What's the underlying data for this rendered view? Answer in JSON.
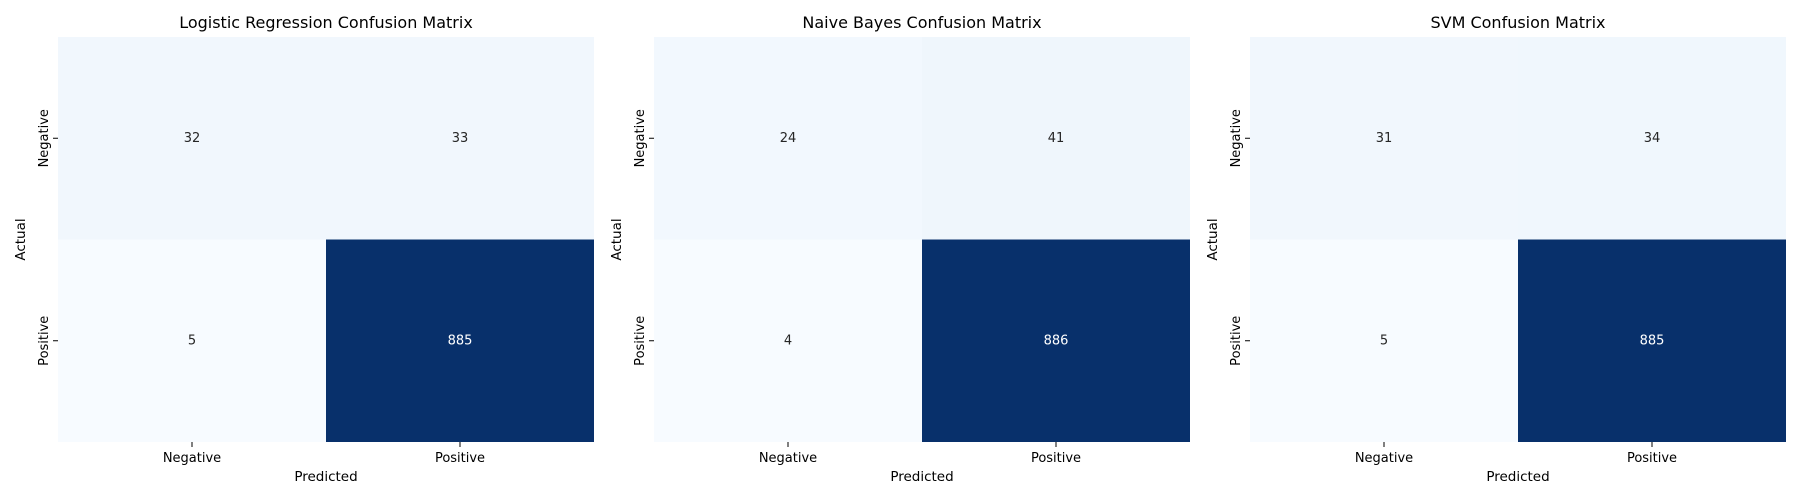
{
  "chart_data": [
    {
      "type": "heatmap",
      "title": "Logistic Regression Confusion Matrix",
      "xlabel": "Predicted",
      "ylabel": "Actual",
      "x_categories": [
        "Negative",
        "Positive"
      ],
      "y_categories": [
        "Negative",
        "Positive"
      ],
      "values": [
        [
          32,
          33
        ],
        [
          5,
          885
        ]
      ],
      "colormap": "Blues",
      "grid": false,
      "legend": "none"
    },
    {
      "type": "heatmap",
      "title": "Naive Bayes Confusion Matrix",
      "xlabel": "Predicted",
      "ylabel": "Actual",
      "x_categories": [
        "Negative",
        "Positive"
      ],
      "y_categories": [
        "Negative",
        "Positive"
      ],
      "values": [
        [
          24,
          41
        ],
        [
          4,
          886
        ]
      ],
      "colormap": "Blues",
      "grid": false,
      "legend": "none"
    },
    {
      "type": "heatmap",
      "title": "SVM Confusion Matrix",
      "xlabel": "Predicted",
      "ylabel": "Actual",
      "x_categories": [
        "Negative",
        "Positive"
      ],
      "y_categories": [
        "Negative",
        "Positive"
      ],
      "values": [
        [
          31,
          34
        ],
        [
          5,
          885
        ]
      ],
      "colormap": "Blues",
      "grid": false,
      "legend": "none"
    }
  ]
}
